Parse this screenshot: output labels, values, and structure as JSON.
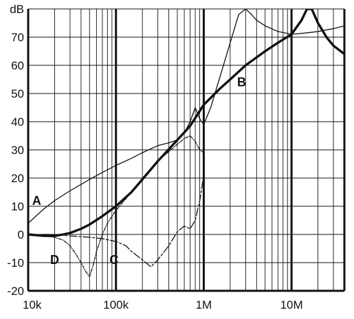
{
  "chart_data": {
    "type": "line",
    "title": "",
    "xlabel": "",
    "ylabel": "",
    "y_unit": "dB",
    "x_scale": "log",
    "xlim": [
      10000,
      40000000
    ],
    "ylim": [
      -20,
      80
    ],
    "grid": true,
    "x_ticks": [
      {
        "value": 10000,
        "label": "10k"
      },
      {
        "value": 100000,
        "label": "100k"
      },
      {
        "value": 1000000,
        "label": "1M"
      },
      {
        "value": 10000000,
        "label": "10M"
      }
    ],
    "y_ticks": [
      {
        "value": -20,
        "label": "-20"
      },
      {
        "value": -10,
        "label": "-10"
      },
      {
        "value": 0,
        "label": "0"
      },
      {
        "value": 10,
        "label": "10"
      },
      {
        "value": 20,
        "label": "20"
      },
      {
        "value": 30,
        "label": "30"
      },
      {
        "value": 40,
        "label": "40"
      },
      {
        "value": 50,
        "label": "50"
      },
      {
        "value": 60,
        "label": "60"
      },
      {
        "value": 70,
        "label": "70"
      }
    ],
    "series": [
      {
        "name": "A",
        "style": "thin-solid",
        "label_at": {
          "x": 12500,
          "y": 12
        },
        "x": [
          10000,
          15000,
          20000,
          30000,
          50000,
          70000,
          100000,
          150000,
          200000,
          300000,
          400000,
          500000,
          600000,
          700000,
          800000,
          900000,
          1000000,
          1200000,
          1500000,
          2000000,
          2500000,
          3000000,
          3500000,
          4000000,
          5000000,
          7000000,
          10000000,
          15000000,
          20000000,
          30000000,
          40000000
        ],
        "y": [
          4,
          9,
          12,
          15.5,
          19.5,
          22,
          24.5,
          27,
          29,
          31.5,
          32.5,
          33.5,
          36,
          40,
          45,
          41,
          39,
          45,
          55,
          68,
          78,
          80,
          78,
          76,
          74,
          72,
          71,
          71.5,
          72,
          73,
          74
        ]
      },
      {
        "name": "B",
        "style": "thick-solid",
        "label_at": {
          "x": 2700000,
          "y": 54
        },
        "x": [
          10000,
          15000,
          20000,
          25000,
          30000,
          40000,
          50000,
          70000,
          100000,
          150000,
          200000,
          300000,
          500000,
          700000,
          1000000,
          1500000,
          2000000,
          3000000,
          5000000,
          7000000,
          10000000,
          13000000,
          15000000,
          17000000,
          20000000,
          25000000,
          30000000,
          40000000
        ],
        "y": [
          0,
          -0.5,
          -0.5,
          0,
          0.5,
          2,
          3.5,
          6.5,
          10,
          15,
          19.5,
          26,
          33.5,
          38.5,
          46,
          51.5,
          55,
          60,
          65,
          68,
          71,
          76,
          80,
          80,
          75,
          70,
          67,
          64
        ]
      },
      {
        "name": "C",
        "style": "long-dash",
        "label_at": {
          "x": 95000,
          "y": -9
        },
        "x": [
          10000,
          20000,
          30000,
          50000,
          70000,
          100000,
          130000,
          150000,
          200000,
          250000,
          300000,
          400000,
          500000,
          600000,
          700000,
          800000,
          900000,
          1000000
        ],
        "y": [
          0,
          0,
          -0.5,
          -1,
          -1.5,
          -2.5,
          -4,
          -6,
          -9,
          -11.5,
          -9,
          -4,
          1,
          3,
          2,
          5,
          12,
          21
        ]
      },
      {
        "name": "D",
        "style": "dash-dot",
        "label_at": {
          "x": 20000,
          "y": -9
        },
        "x": [
          10000,
          15000,
          20000,
          25000,
          30000,
          35000,
          40000,
          45000,
          50000,
          55000,
          60000,
          70000,
          80000,
          100000,
          150000,
          200000,
          300000,
          500000,
          600000,
          700000,
          800000,
          900000,
          1000000
        ],
        "y": [
          0,
          -0.5,
          -1,
          -2,
          -4,
          -7,
          -10,
          -13,
          -15,
          -11,
          -6,
          0,
          4,
          8.5,
          15,
          20,
          26,
          32,
          34,
          35,
          33,
          30,
          29
        ]
      }
    ]
  }
}
